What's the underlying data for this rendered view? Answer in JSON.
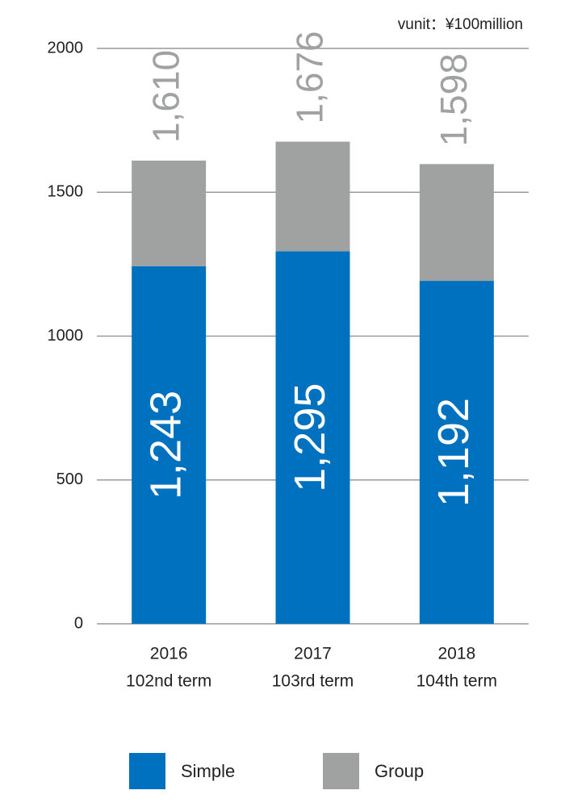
{
  "chart_data": {
    "type": "stacked_bar",
    "unit": "vunit：¥100million",
    "categories": [
      "2016",
      "2017",
      "2018"
    ],
    "sublabels": [
      "102nd term",
      "103rd term",
      "104th term"
    ],
    "series": [
      {
        "name": "Simple",
        "color": "#0071bf",
        "values": [
          1243,
          1295,
          1192
        ],
        "value_labels": [
          "1,243",
          "1,295",
          "1,192"
        ]
      },
      {
        "name": "Group",
        "color": "#a0a1a1",
        "values": [
          367,
          381,
          406
        ]
      }
    ],
    "totals": [
      1610,
      1676,
      1598
    ],
    "total_labels": [
      "1,610",
      "1,676",
      "1,598"
    ],
    "ylim": [
      0,
      2000
    ],
    "yticks": [
      0,
      500,
      1000,
      1500,
      2000
    ],
    "grid": true,
    "legend": "bottom"
  }
}
